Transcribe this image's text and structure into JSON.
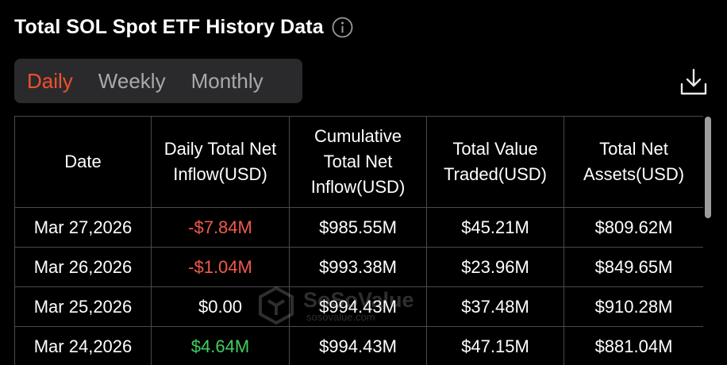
{
  "header": {
    "title": "Total SOL Spot ETF History Data",
    "info_icon": "info-circle-icon"
  },
  "tabs": [
    {
      "label": "Daily",
      "active": true
    },
    {
      "label": "Weekly",
      "active": false
    },
    {
      "label": "Monthly",
      "active": false
    }
  ],
  "download_icon": "download-icon",
  "table": {
    "columns": [
      "Date",
      "Daily Total Net Inflow(USD)",
      "Cumulative Total Net Inflow(USD)",
      "Total Value Traded(USD)",
      "Total Net Assets(USD)"
    ],
    "rows": [
      {
        "date": "Mar 27,2026",
        "daily": "-$7.84M",
        "cumulative": "$985.55M",
        "traded": "$45.21M",
        "assets": "$809.62M"
      },
      {
        "date": "Mar 26,2026",
        "daily": "-$1.04M",
        "cumulative": "$993.38M",
        "traded": "$23.96M",
        "assets": "$849.65M"
      },
      {
        "date": "Mar 25,2026",
        "daily": "$0.00",
        "cumulative": "$994.43M",
        "traded": "$37.48M",
        "assets": "$910.28M"
      },
      {
        "date": "Mar 24,2026",
        "daily": "$4.64M",
        "cumulative": "$994.43M",
        "traded": "$47.15M",
        "assets": "$881.04M"
      }
    ]
  },
  "watermark": {
    "brand": "SoSoValue",
    "url": "sosovalue.com"
  },
  "colors": {
    "accent": "#f0502e",
    "negative": "#f25a4a",
    "positive": "#3fcf5e",
    "background": "#000000",
    "tab_bg": "#2a2a2c",
    "border": "#4a4a4c"
  }
}
